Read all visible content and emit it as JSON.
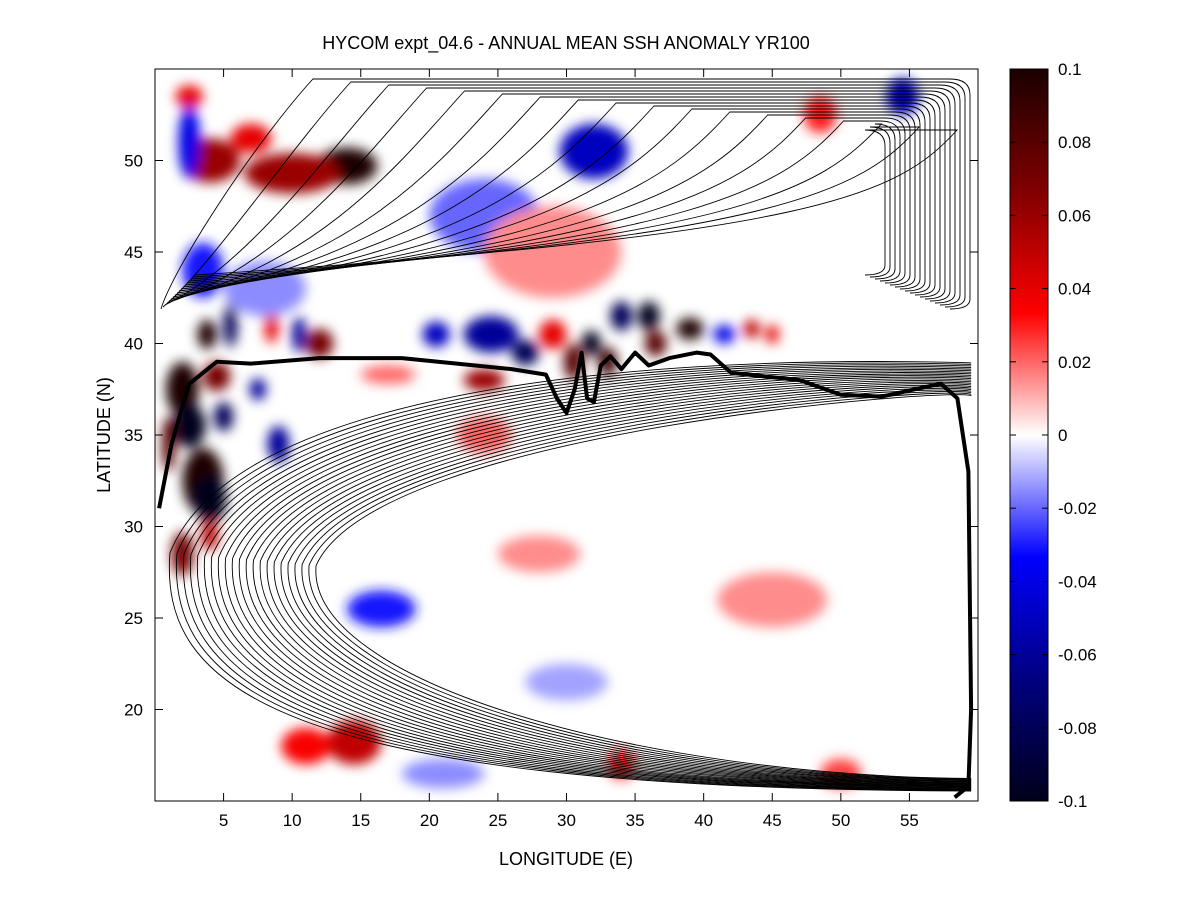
{
  "chart_data": {
    "type": "heatmap",
    "title": "HYCOM expt_04.6 - ANNUAL MEAN SSH ANOMALY YR100",
    "xlabel": "LONGITUDE (E)",
    "ylabel": "LATITUDE (N)",
    "xlim": [
      0,
      60
    ],
    "ylim": [
      15,
      55
    ],
    "xticks": [
      5,
      10,
      15,
      20,
      25,
      30,
      35,
      40,
      45,
      50,
      55
    ],
    "xtick_labels": [
      "5",
      "10",
      "15",
      "20",
      "25",
      "30",
      "35",
      "40",
      "45",
      "50",
      "55"
    ],
    "yticks": [
      20,
      25,
      30,
      35,
      40,
      45,
      50
    ],
    "ytick_labels": [
      "20",
      "25",
      "30",
      "35",
      "40",
      "45",
      "50"
    ],
    "colorbar": {
      "limits": [
        -0.1,
        0.1
      ],
      "ticks": [
        0.1,
        0.08,
        0.06,
        0.04,
        0.02,
        0,
        -0.02,
        -0.04,
        -0.06,
        -0.08,
        -0.1
      ],
      "tick_labels": [
        "0.1",
        "0.08",
        "0.06",
        "0.04",
        "0.02",
        "0",
        "-0.02",
        "-0.04",
        "-0.06",
        "-0.08",
        "-0.1"
      ],
      "colors": [
        "#1a0000",
        "#800000",
        "#ff0000",
        "#ffffff",
        "#0000ff",
        "#000080",
        "#00001a"
      ]
    },
    "anomalies": [
      {
        "lon": 14,
        "lat": 49.7,
        "rlon": 2.2,
        "rlat": 1.0,
        "value": 0.1
      },
      {
        "lon": 10,
        "lat": 49.3,
        "rlon": 3.5,
        "rlat": 1.1,
        "value": 0.06
      },
      {
        "lon": 4,
        "lat": 50.0,
        "rlon": 2.2,
        "rlat": 1.2,
        "value": 0.06
      },
      {
        "lon": 7,
        "lat": 51.2,
        "rlon": 1.5,
        "rlat": 0.8,
        "value": 0.04
      },
      {
        "lon": 2.5,
        "lat": 53.5,
        "rlon": 1.0,
        "rlat": 0.6,
        "value": 0.04
      },
      {
        "lon": 2.5,
        "lat": 51.0,
        "rlon": 0.8,
        "rlat": 2.0,
        "value": -0.04
      },
      {
        "lon": 32,
        "lat": 50.5,
        "rlon": 2.5,
        "rlat": 1.5,
        "value": -0.05
      },
      {
        "lon": 24,
        "lat": 47.0,
        "rlon": 4.0,
        "rlat": 2.0,
        "value": -0.02
      },
      {
        "lon": 54.5,
        "lat": 53.5,
        "rlon": 1.2,
        "rlat": 1.0,
        "value": -0.05
      },
      {
        "lon": 48.5,
        "lat": 52.5,
        "rlon": 1.2,
        "rlat": 1.0,
        "value": 0.03
      },
      {
        "lon": 29,
        "lat": 45.0,
        "rlon": 5.0,
        "rlat": 2.5,
        "value": 0.015
      },
      {
        "lon": 3.5,
        "lat": 44.0,
        "rlon": 1.5,
        "rlat": 1.5,
        "value": -0.03
      },
      {
        "lon": 3.8,
        "lat": 40.5,
        "rlon": 0.7,
        "rlat": 0.8,
        "value": 0.1
      },
      {
        "lon": 5.5,
        "lat": 41.0,
        "rlon": 0.5,
        "rlat": 1.2,
        "value": -0.08
      },
      {
        "lon": 8.5,
        "lat": 41.0,
        "rlon": 0.5,
        "rlat": 1.0,
        "value": 0.04
      },
      {
        "lon": 10.5,
        "lat": 40.5,
        "rlon": 0.5,
        "rlat": 1.0,
        "value": -0.06
      },
      {
        "lon": 12,
        "lat": 40.0,
        "rlon": 1.0,
        "rlat": 0.8,
        "value": 0.07
      },
      {
        "lon": 20.5,
        "lat": 40.5,
        "rlon": 1.0,
        "rlat": 0.7,
        "value": -0.05
      },
      {
        "lon": 24.5,
        "lat": 40.5,
        "rlon": 2.0,
        "rlat": 1.0,
        "value": -0.06
      },
      {
        "lon": 27,
        "lat": 39.5,
        "rlon": 1.0,
        "rlat": 0.7,
        "value": -0.08
      },
      {
        "lon": 29,
        "lat": 40.5,
        "rlon": 1.0,
        "rlat": 0.8,
        "value": 0.04
      },
      {
        "lon": 30.5,
        "lat": 39.0,
        "rlon": 0.7,
        "rlat": 1.0,
        "value": 0.08
      },
      {
        "lon": 31.8,
        "lat": 40.0,
        "rlon": 0.7,
        "rlat": 0.7,
        "value": -0.1
      },
      {
        "lon": 33,
        "lat": 39.0,
        "rlon": 0.7,
        "rlat": 0.8,
        "value": 0.09
      },
      {
        "lon": 34,
        "lat": 41.5,
        "rlon": 0.8,
        "rlat": 0.8,
        "value": -0.08
      },
      {
        "lon": 36,
        "lat": 41.5,
        "rlon": 0.8,
        "rlat": 0.8,
        "value": -0.1
      },
      {
        "lon": 36.5,
        "lat": 40.0,
        "rlon": 0.8,
        "rlat": 0.7,
        "value": 0.08
      },
      {
        "lon": 39,
        "lat": 40.8,
        "rlon": 1.0,
        "rlat": 0.6,
        "value": 0.1
      },
      {
        "lon": 41.5,
        "lat": 40.5,
        "rlon": 0.8,
        "rlat": 0.5,
        "value": -0.04
      },
      {
        "lon": 43.5,
        "lat": 40.8,
        "rlon": 0.6,
        "rlat": 0.5,
        "value": 0.05
      },
      {
        "lon": 45,
        "lat": 40.5,
        "rlon": 0.5,
        "rlat": 0.5,
        "value": 0.04
      },
      {
        "lon": 24,
        "lat": 38.0,
        "rlon": 1.5,
        "rlat": 0.6,
        "value": 0.06
      },
      {
        "lon": 17,
        "lat": 38.3,
        "rlon": 2.0,
        "rlat": 0.5,
        "value": 0.02
      },
      {
        "lon": 2,
        "lat": 37.5,
        "rlon": 1.2,
        "rlat": 1.5,
        "value": 0.1
      },
      {
        "lon": 4.5,
        "lat": 38.2,
        "rlon": 1.0,
        "rlat": 0.8,
        "value": 0.07
      },
      {
        "lon": 2.5,
        "lat": 35.5,
        "rlon": 1.2,
        "rlat": 1.2,
        "value": -0.1
      },
      {
        "lon": 5,
        "lat": 36.0,
        "rlon": 0.7,
        "rlat": 0.8,
        "value": -0.08
      },
      {
        "lon": 3.5,
        "lat": 32.5,
        "rlon": 1.5,
        "rlat": 1.8,
        "value": 0.1
      },
      {
        "lon": 4,
        "lat": 31.5,
        "rlon": 1.2,
        "rlat": 1.3,
        "value": -0.1
      },
      {
        "lon": 1,
        "lat": 34.5,
        "rlon": 0.5,
        "rlat": 1.5,
        "value": 0.08
      },
      {
        "lon": 7.5,
        "lat": 37.5,
        "rlon": 0.6,
        "rlat": 0.6,
        "value": -0.06
      },
      {
        "lon": 9,
        "lat": 34.5,
        "rlon": 0.8,
        "rlat": 1.0,
        "value": -0.06
      },
      {
        "lon": 2,
        "lat": 28.5,
        "rlon": 0.8,
        "rlat": 1.2,
        "value": 0.07
      },
      {
        "lon": 4,
        "lat": 29.5,
        "rlon": 0.6,
        "rlat": 0.8,
        "value": 0.05
      },
      {
        "lon": 16.5,
        "lat": 25.5,
        "rlon": 2.5,
        "rlat": 1.0,
        "value": -0.03
      },
      {
        "lon": 24,
        "lat": 35.0,
        "rlon": 2.0,
        "rlat": 1.0,
        "value": 0.02
      },
      {
        "lon": 28,
        "lat": 28.5,
        "rlon": 3.0,
        "rlat": 1.0,
        "value": 0.015
      },
      {
        "lon": 45,
        "lat": 26.0,
        "rlon": 4.0,
        "rlat": 1.5,
        "value": 0.015
      },
      {
        "lon": 14.5,
        "lat": 18.2,
        "rlon": 2.0,
        "rlat": 1.2,
        "value": 0.05
      },
      {
        "lon": 11,
        "lat": 18.0,
        "rlon": 1.8,
        "rlat": 1.0,
        "value": 0.035
      },
      {
        "lon": 21,
        "lat": 16.5,
        "rlon": 3.0,
        "rlat": 0.8,
        "value": -0.015
      },
      {
        "lon": 34,
        "lat": 17.0,
        "rlon": 1.0,
        "rlat": 0.8,
        "value": 0.03
      },
      {
        "lon": 50,
        "lat": 16.5,
        "rlon": 1.5,
        "rlat": 0.8,
        "value": 0.025
      },
      {
        "lon": 30,
        "lat": 21.5,
        "rlon": 3.0,
        "rlat": 1.0,
        "value": -0.012
      },
      {
        "lon": 8,
        "lat": 43.0,
        "rlon": 3.0,
        "rlat": 1.5,
        "value": -0.015
      }
    ],
    "contours": {
      "description": "mean SSH contours; thick contour marks the separated jet",
      "southern_gyre_count": 22,
      "northern_gyre_count": 18
    }
  }
}
